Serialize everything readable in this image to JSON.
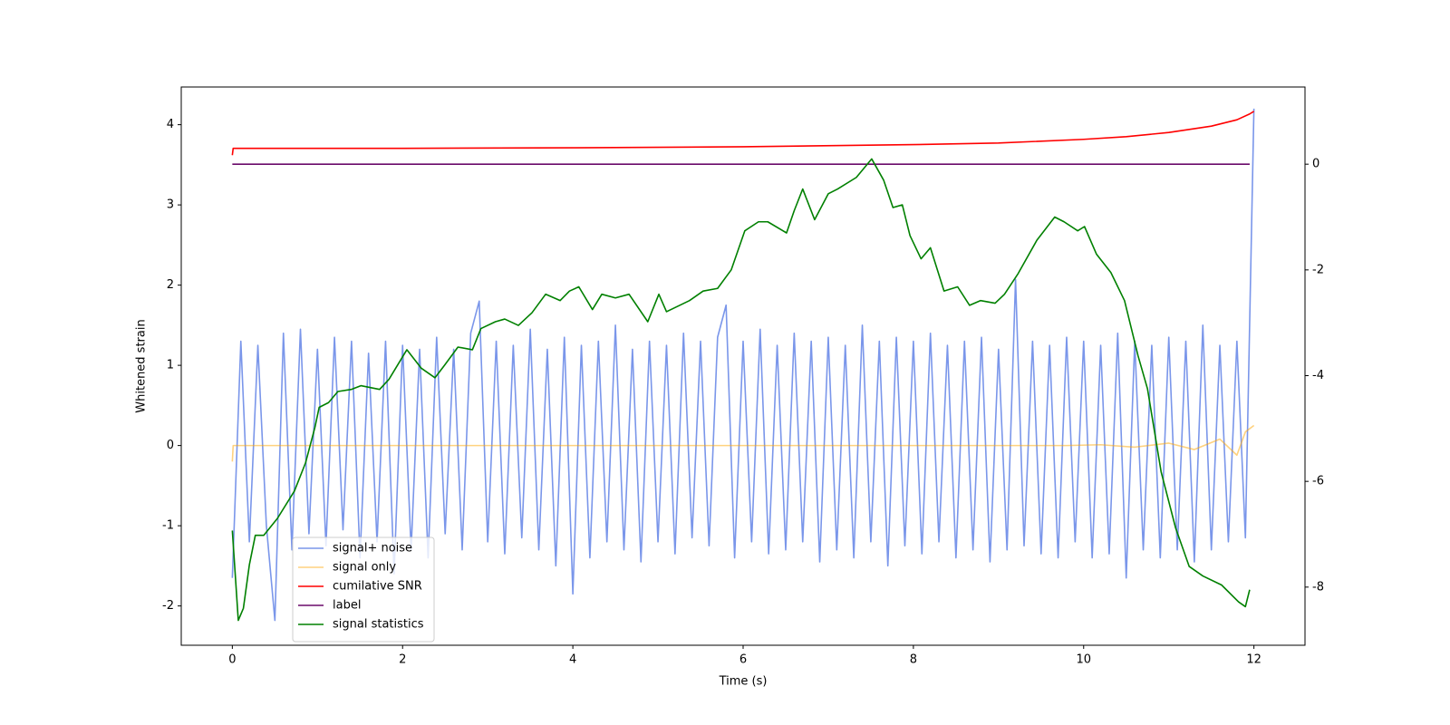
{
  "chart_data": {
    "type": "line",
    "xlabel": "Time (s)",
    "ylabel": "Whitened strain",
    "xlim": [
      -0.6,
      12.6
    ],
    "xticks": [
      0,
      2,
      4,
      6,
      8,
      10,
      12
    ],
    "ylim": [
      -2.49,
      4.47
    ],
    "yticks": [
      -2,
      -1,
      0,
      1,
      2,
      3,
      4
    ],
    "y2lim": [
      -9.1,
      1.46
    ],
    "y2ticks": [
      -8,
      -6,
      -4,
      -2,
      0
    ],
    "grid": false,
    "legend": "lower left",
    "series": [
      {
        "name": "signal+ noise",
        "color": "#4169e1",
        "opacity": 0.7,
        "axis": "y",
        "x": [
          0,
          0.1,
          0.2,
          0.3,
          0.4,
          0.5,
          0.6,
          0.7,
          0.8,
          0.9,
          1,
          1.1,
          1.2,
          1.3,
          1.4,
          1.5,
          1.6,
          1.7,
          1.8,
          1.9,
          2,
          2.1,
          2.2,
          2.3,
          2.4,
          2.5,
          2.6,
          2.7,
          2.8,
          2.9,
          3,
          3.1,
          3.2,
          3.3,
          3.4,
          3.5,
          3.6,
          3.7,
          3.8,
          3.9,
          4,
          4.1,
          4.2,
          4.3,
          4.4,
          4.5,
          4.6,
          4.7,
          4.8,
          4.9,
          5,
          5.1,
          5.2,
          5.3,
          5.4,
          5.5,
          5.6,
          5.7,
          5.8,
          5.9,
          6,
          6.1,
          6.2,
          6.3,
          6.4,
          6.5,
          6.6,
          6.7,
          6.8,
          6.9,
          7,
          7.1,
          7.2,
          7.3,
          7.4,
          7.5,
          7.6,
          7.7,
          7.8,
          7.9,
          8,
          8.1,
          8.2,
          8.3,
          8.4,
          8.5,
          8.6,
          8.7,
          8.8,
          8.9,
          9,
          9.1,
          9.2,
          9.3,
          9.4,
          9.5,
          9.6,
          9.7,
          9.8,
          9.9,
          10,
          10.1,
          10.2,
          10.3,
          10.4,
          10.5,
          10.6,
          10.7,
          10.8,
          10.9,
          11,
          11.1,
          11.2,
          11.3,
          11.4,
          11.5,
          11.6,
          11.7,
          11.8,
          11.9,
          12
        ],
        "values": [
          -1.65,
          1.3,
          -1.2,
          1.25,
          -1.0,
          -2.18,
          1.4,
          -1.3,
          1.45,
          -1.1,
          1.2,
          -1.25,
          1.35,
          -1.05,
          1.3,
          -1.4,
          1.15,
          -1.2,
          1.3,
          -1.6,
          1.25,
          -1.3,
          1.2,
          -1.4,
          1.35,
          -1.1,
          1.2,
          -1.3,
          1.4,
          1.8,
          -1.2,
          1.3,
          -1.35,
          1.25,
          -1.15,
          1.45,
          -1.3,
          1.2,
          -1.5,
          1.35,
          -1.85,
          1.25,
          -1.4,
          1.3,
          -1.2,
          1.5,
          -1.3,
          1.2,
          -1.45,
          1.3,
          -1.2,
          1.25,
          -1.35,
          1.4,
          -1.15,
          1.3,
          -1.25,
          1.35,
          1.75,
          -1.4,
          1.3,
          -1.2,
          1.45,
          -1.35,
          1.25,
          -1.3,
          1.4,
          -1.2,
          1.3,
          -1.45,
          1.35,
          -1.3,
          1.25,
          -1.4,
          1.5,
          -1.2,
          1.3,
          -1.5,
          1.35,
          -1.25,
          1.3,
          -1.35,
          1.4,
          -1.2,
          1.25,
          -1.4,
          1.3,
          -1.3,
          1.35,
          -1.45,
          1.2,
          -1.3,
          2.07,
          -1.25,
          1.3,
          -1.35,
          1.25,
          -1.4,
          1.35,
          -1.2,
          1.3,
          -1.4,
          1.25,
          -1.35,
          1.4,
          -1.65,
          1.3,
          -1.3,
          1.25,
          -1.4,
          1.35,
          -1.3,
          1.3,
          -1.45,
          1.5,
          -1.3,
          1.25,
          -1.2,
          1.3,
          -1.15,
          4.2
        ]
      },
      {
        "name": "signal only",
        "color": "#ffa500",
        "opacity": 0.5,
        "axis": "y",
        "x": [
          0,
          0.01,
          9.8,
          10.2,
          10.6,
          11.0,
          11.3,
          11.6,
          11.8,
          11.9,
          12
        ],
        "values": [
          -0.2,
          0,
          0,
          0.01,
          -0.02,
          0.03,
          -0.05,
          0.08,
          -0.12,
          0.17,
          0.25
        ]
      },
      {
        "name": "cumilative SNR",
        "color": "#ff0000",
        "opacity": 1,
        "axis": "y2",
        "x": [
          0,
          0.01,
          2,
          4,
          6,
          8,
          9,
          10,
          10.5,
          11,
          11.5,
          11.8,
          11.95,
          12
        ],
        "values": [
          0.17,
          0.3,
          0.3,
          0.31,
          0.33,
          0.37,
          0.4,
          0.47,
          0.52,
          0.6,
          0.72,
          0.84,
          0.95,
          1.0
        ]
      },
      {
        "name": "label",
        "color": "#6a0a6a",
        "opacity": 1,
        "axis": "y2",
        "x": [
          0,
          11.95
        ],
        "values": [
          0,
          0
        ]
      },
      {
        "name": "signal statistics",
        "color": "#008000",
        "opacity": 1,
        "axis": "y2",
        "x": [
          0,
          0.07,
          0.13,
          0.2,
          0.27,
          0.37,
          0.53,
          0.73,
          0.86,
          0.97,
          1.02,
          1.13,
          1.24,
          1.4,
          1.51,
          1.73,
          1.84,
          2.05,
          2.22,
          2.38,
          2.49,
          2.65,
          2.82,
          2.92,
          3.09,
          3.2,
          3.36,
          3.52,
          3.68,
          3.85,
          3.96,
          4.07,
          4.23,
          4.34,
          4.5,
          4.66,
          4.88,
          5.01,
          5.1,
          5.37,
          5.53,
          5.7,
          5.86,
          6.02,
          6.18,
          6.29,
          6.51,
          6.6,
          6.7,
          6.84,
          7.0,
          7.11,
          7.33,
          7.51,
          7.65,
          7.76,
          7.87,
          7.96,
          8.09,
          8.2,
          8.36,
          8.52,
          8.66,
          8.79,
          8.96,
          9.07,
          9.23,
          9.45,
          9.66,
          9.77,
          9.93,
          10.01,
          10.15,
          10.32,
          10.48,
          10.64,
          10.75,
          10.91,
          11.08,
          11.24,
          11.4,
          11.62,
          11.82,
          11.9,
          11.95
        ],
        "values": [
          -6.93,
          -8.63,
          -8.4,
          -7.58,
          -7.02,
          -7.02,
          -6.7,
          -6.18,
          -5.65,
          -4.98,
          -4.6,
          -4.51,
          -4.3,
          -4.26,
          -4.19,
          -4.26,
          -4.07,
          -3.51,
          -3.86,
          -4.04,
          -3.81,
          -3.46,
          -3.51,
          -3.11,
          -2.98,
          -2.93,
          -3.05,
          -2.81,
          -2.46,
          -2.58,
          -2.4,
          -2.32,
          -2.75,
          -2.46,
          -2.53,
          -2.46,
          -2.98,
          -2.46,
          -2.79,
          -2.58,
          -2.4,
          -2.35,
          -2.0,
          -1.26,
          -1.09,
          -1.09,
          -1.3,
          -0.88,
          -0.47,
          -1.05,
          -0.56,
          -0.47,
          -0.25,
          0.1,
          -0.3,
          -0.82,
          -0.77,
          -1.35,
          -1.79,
          -1.58,
          -2.4,
          -2.32,
          -2.67,
          -2.58,
          -2.63,
          -2.46,
          -2.07,
          -1.44,
          -1.0,
          -1.09,
          -1.26,
          -1.18,
          -1.7,
          -2.05,
          -2.58,
          -3.63,
          -4.25,
          -5.82,
          -6.88,
          -7.61,
          -7.79,
          -7.96,
          -8.28,
          -8.37,
          -8.05
        ]
      }
    ]
  }
}
